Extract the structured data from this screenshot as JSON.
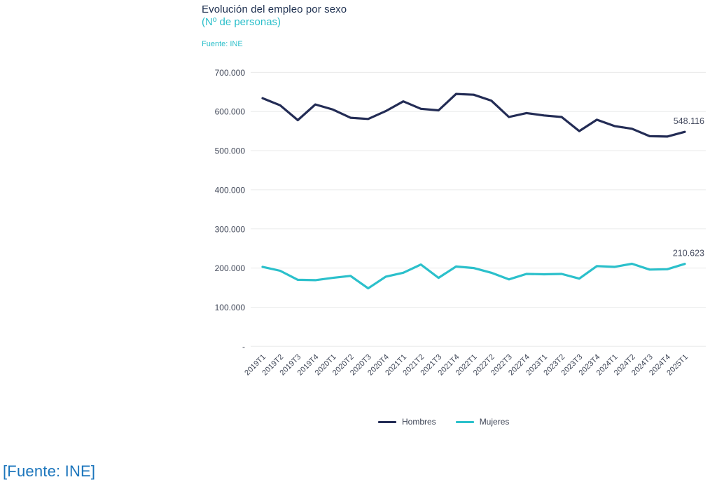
{
  "header": {
    "title": "Evolución del empleo por sexo",
    "subtitle": "(Nº de personas)",
    "source": "Fuente: INE"
  },
  "footer": {
    "source": "[Fuente: INE]"
  },
  "legend": {
    "items": [
      {
        "label": "Hombres",
        "color": "#232c55"
      },
      {
        "label": "Mujeres",
        "color": "#2bc0cb"
      }
    ]
  },
  "colors": {
    "title": "#1e3050",
    "subtitle": "#2bbfca",
    "axis_label": "#3d4455",
    "gridline": "#e9eaea",
    "annotation": "#474d61",
    "footer_source": "#1b75bc"
  },
  "chart_data": {
    "type": "line",
    "title": "Evolución del empleo por sexo",
    "subtitle": "(Nº de personas)",
    "source": "Fuente: INE",
    "categories": [
      "2019T1",
      "2019T2",
      "2019T3",
      "2019T4",
      "2020T1",
      "2020T2",
      "2020T3",
      "2020T4",
      "2021T1",
      "2021T2",
      "2021T3",
      "2021T4",
      "2022T1",
      "2022T2",
      "2022T3",
      "2022T4",
      "2023T1",
      "2023T2",
      "2023T3",
      "2023T4",
      "2024T1",
      "2024T2",
      "2024T3",
      "2024T4",
      "2025T1"
    ],
    "series": [
      {
        "name": "Hombres",
        "color": "#232c55",
        "values": [
          634000,
          616000,
          578000,
          618000,
          605000,
          584000,
          581000,
          601000,
          626000,
          607000,
          603000,
          645000,
          643000,
          628000,
          586000,
          596000,
          590000,
          586000,
          550000,
          579000,
          563000,
          556000,
          537000,
          536000,
          548116
        ],
        "end_label": "548.116"
      },
      {
        "name": "Mujeres",
        "color": "#2bc0cb",
        "values": [
          203000,
          193000,
          170000,
          169000,
          175000,
          180000,
          148000,
          178000,
          188000,
          209000,
          175000,
          204000,
          200000,
          188000,
          171000,
          185000,
          184000,
          185000,
          173000,
          205000,
          203000,
          211000,
          196000,
          197000,
          210623
        ],
        "end_label": "210.623"
      }
    ],
    "ylim": [
      0,
      700000
    ],
    "ytick_step": 100000,
    "ytick_labels": [
      "-",
      "100.000",
      "200.000",
      "300.000",
      "400.000",
      "500.000",
      "600.000",
      "700.000"
    ],
    "grid": "horizontal",
    "legend_position": "bottom",
    "x_label_rotation": -45
  }
}
